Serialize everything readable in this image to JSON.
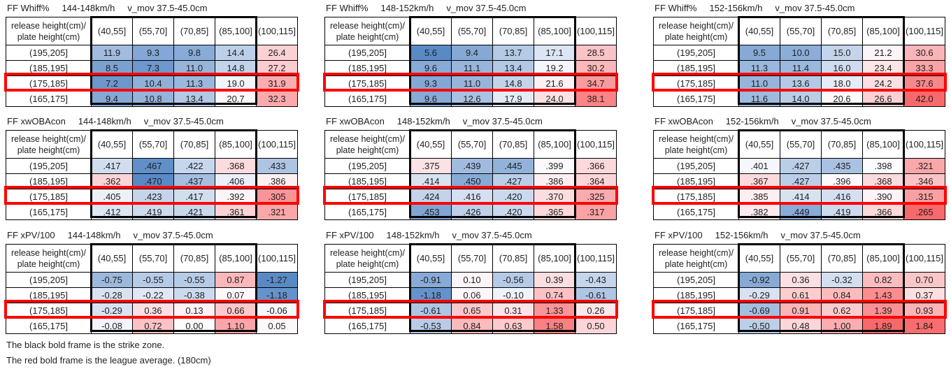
{
  "shared": {
    "corner_label_line1": "release height(cm)/",
    "corner_label_line2": "plate height(cm)",
    "x_categories": [
      "(40,55]",
      "(55,70]",
      "(70,85]",
      "(85,100]",
      "(100,115]"
    ],
    "y_categories": [
      "(195,205]",
      "(185,195]",
      "(175,185]",
      "(165,175]"
    ],
    "strike_zone_columns": [
      "(40,55]",
      "(55,70]",
      "(70,85]",
      "(85,100]"
    ],
    "league_average_row": "(175,185]"
  },
  "palette": {
    "low_blue": "#5A8AC6",
    "mid_white": "#FCFCFF",
    "high_red": "#F8696B",
    "strike_frame": "#000000",
    "league_frame": "#FF0000",
    "grid": "#000000"
  },
  "color_scales": {
    "whiff": {
      "min": 5.6,
      "mid": 20.0,
      "max": 42.0,
      "high_is": "red"
    },
    "xwobacon": {
      "min": 0.265,
      "mid": 0.398,
      "max": 0.47,
      "high_is": "blue"
    },
    "xpv": {
      "min": -1.27,
      "mid": 0.0,
      "max": 1.89,
      "high_is": "red"
    }
  },
  "chart_data": [
    {
      "type": "heatmap",
      "metric": "FF Whiff%",
      "speed": "144-148km/h",
      "vmov": "v_mov 37.5-45.0cm",
      "scale": "whiff",
      "values": [
        [
          "11.9",
          "9.3",
          "9.8",
          "14.4",
          "26.4"
        ],
        [
          "8.5",
          "7.3",
          "11.0",
          "14.8",
          "27.2"
        ],
        [
          "7.2",
          "10.4",
          "11.3",
          "19.0",
          "31.9"
        ],
        [
          "9.4",
          "10.8",
          "13.4",
          "20.7",
          "32.3"
        ]
      ]
    },
    {
      "type": "heatmap",
      "metric": "FF Whiff%",
      "speed": "148-152km/h",
      "vmov": "v_mov 37.5-45.0cm",
      "scale": "whiff",
      "values": [
        [
          "5.6",
          "9.4",
          "13.7",
          "17.1",
          "28.5"
        ],
        [
          "9.6",
          "11.1",
          "13.4",
          "19.2",
          "30.2"
        ],
        [
          "9.3",
          "11.0",
          "14.8",
          "21.6",
          "34.7"
        ],
        [
          "9.6",
          "12.6",
          "17.9",
          "24.0",
          "38.1"
        ]
      ]
    },
    {
      "type": "heatmap",
      "metric": "FF Whiff%",
      "speed": "152-156km/h",
      "vmov": "v_mov 37.5-45.0cm",
      "scale": "whiff",
      "values": [
        [
          "9.5",
          "10.0",
          "15.0",
          "21.2",
          "30.6"
        ],
        [
          "11.3",
          "11.4",
          "16.0",
          "23.4",
          "33.3"
        ],
        [
          "11.0",
          "13.6",
          "18.0",
          "24.2",
          "37.6"
        ],
        [
          "11.6",
          "14.0",
          "20.6",
          "26.6",
          "42.0"
        ]
      ]
    },
    {
      "type": "heatmap",
      "metric": "FF xwOBAcon",
      "speed": "144-148km/h",
      "vmov": "v_mov 37.5-45.0cm",
      "scale": "xwobacon",
      "values": [
        [
          ".417",
          ".467",
          ".422",
          ".368",
          ".433"
        ],
        [
          ".362",
          ".470",
          ".437",
          ".406",
          ".386"
        ],
        [
          ".405",
          ".423",
          ".417",
          ".392",
          ".305"
        ],
        [
          ".412",
          ".419",
          ".421",
          ".361",
          ".321"
        ]
      ]
    },
    {
      "type": "heatmap",
      "metric": "FF xwOBAcon",
      "speed": "148-152km/h",
      "vmov": "v_mov 37.5-45.0cm",
      "scale": "xwobacon",
      "values": [
        [
          ".375",
          ".439",
          ".445",
          ".399",
          ".366"
        ],
        [
          ".414",
          ".450",
          ".427",
          ".386",
          ".364"
        ],
        [
          ".424",
          ".416",
          ".420",
          ".370",
          ".325"
        ],
        [
          ".453",
          ".426",
          ".420",
          ".365",
          ".317"
        ]
      ]
    },
    {
      "type": "heatmap",
      "metric": "FF xwOBAcon",
      "speed": "152-156km/h",
      "vmov": "v_mov 37.5-45.0cm",
      "scale": "xwobacon",
      "values": [
        [
          ".401",
          ".427",
          ".435",
          ".398",
          ".321"
        ],
        [
          ".367",
          ".427",
          ".396",
          ".368",
          ".346"
        ],
        [
          ".385",
          ".414",
          ".416",
          ".390",
          ".315"
        ],
        [
          ".382",
          ".449",
          ".419",
          ".366",
          ".265"
        ]
      ]
    },
    {
      "type": "heatmap",
      "metric": "FF xPV/100",
      "speed": "144-148km/h",
      "vmov": "v_mov 37.5-45.0cm",
      "scale": "xpv",
      "values": [
        [
          "-0.75",
          "-0.55",
          "-0.55",
          "0.87",
          "-1.27"
        ],
        [
          "-0.28",
          "-0.22",
          "-0.38",
          "0.07",
          "-1.18"
        ],
        [
          "-0.29",
          "0.36",
          "0.13",
          "0.66",
          "-0.06"
        ],
        [
          "-0.08",
          "0.72",
          "0.00",
          "1.10",
          "0.05"
        ]
      ]
    },
    {
      "type": "heatmap",
      "metric": "FF xPV/100",
      "speed": "148-152km/h",
      "vmov": "v_mov 37.5-45.0cm",
      "scale": "xpv",
      "values": [
        [
          "-0.91",
          "0.10",
          "-0.56",
          "0.39",
          "-0.43"
        ],
        [
          "-1.18",
          "0.06",
          "-0.10",
          "0.74",
          "-0.61"
        ],
        [
          "-0.61",
          "0.65",
          "0.31",
          "1.33",
          "0.26"
        ],
        [
          "-0.53",
          "0.84",
          "0.63",
          "1.58",
          "0.50"
        ]
      ]
    },
    {
      "type": "heatmap",
      "metric": "FF xPV/100",
      "speed": "152-156km/h",
      "vmov": "v_mov 37.5-45.0cm",
      "scale": "xpv",
      "values": [
        [
          "-0.92",
          "0.36",
          "-0.32",
          "0.82",
          "0.70"
        ],
        [
          "-0.29",
          "0.61",
          "0.84",
          "1.43",
          "0.37"
        ],
        [
          "-0.69",
          "0.91",
          "0.62",
          "1.39",
          "0.93"
        ],
        [
          "-0.50",
          "0.48",
          "1.00",
          "1.89",
          "1.84"
        ]
      ]
    }
  ],
  "page": {
    "footnotes": [
      "The black bold frame is the strike zone.",
      "The red bold frame is the league average. (180cm)"
    ]
  }
}
